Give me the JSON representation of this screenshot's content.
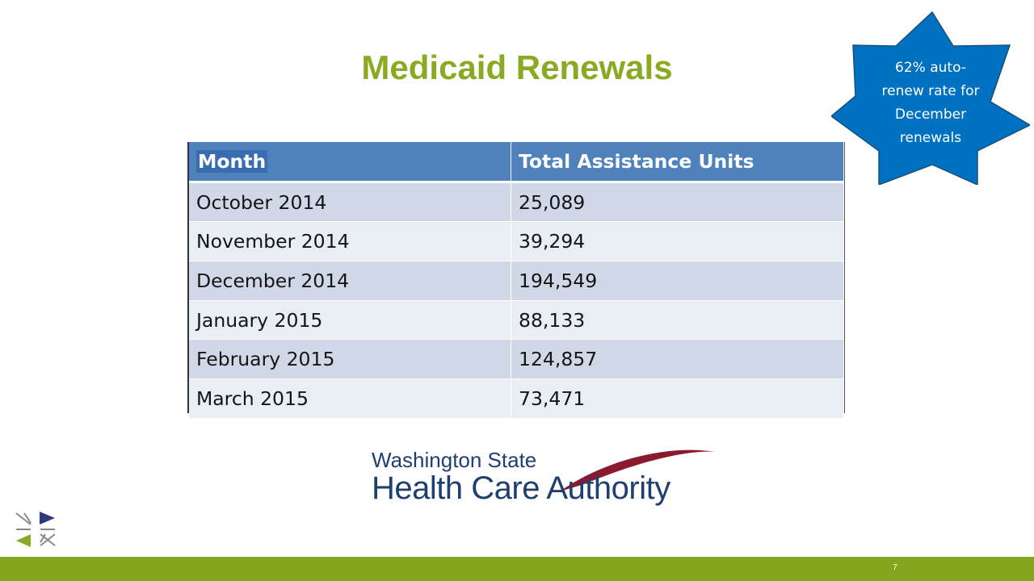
{
  "slide": {
    "title": "Medicaid Renewals",
    "page_number": "7"
  },
  "callout": {
    "lines": [
      "62% auto-",
      "renew rate for",
      "December",
      "renewals"
    ],
    "color": "#0070c0"
  },
  "table": {
    "headers": [
      "Month",
      "Total Assistance Units"
    ],
    "rows": [
      [
        "October 2014",
        "25,089"
      ],
      [
        "November 2014",
        "39,294"
      ],
      [
        "December 2014",
        "194,549"
      ],
      [
        "January 2015",
        "88,133"
      ],
      [
        "February 2015",
        "124,857"
      ],
      [
        "March 2015",
        "73,471"
      ]
    ]
  },
  "logo": {
    "line1": "Washington State",
    "line2": "Health Care Authority"
  },
  "colors": {
    "title_green": "#8aaa24",
    "footer_green": "#84a61f",
    "header_blue": "#4f81bd"
  }
}
